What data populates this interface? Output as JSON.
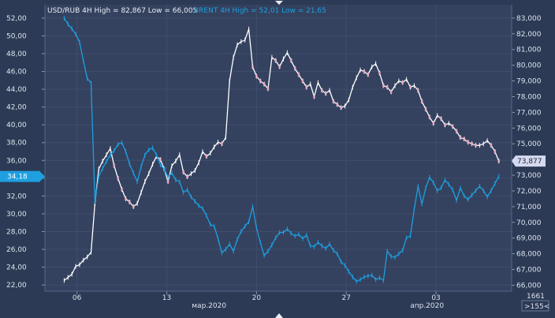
{
  "header": {
    "usd_title": "USD/RUB 4H High = 82,867 Low = 66,005",
    "brent_title": "BRENT 4H High = 52,01 Low = 21,65"
  },
  "colors": {
    "background": "#2c3a55",
    "grid": "#3f4e6c",
    "axis_text": "#dde3ee",
    "usd_line": "#ffffff",
    "brent_line": "#1e9fe0",
    "usd_marker": "#d6daf0",
    "brent_marker": "#1e9fe0",
    "usd_bear_candle": "#e8a8c0"
  },
  "bottom_right": {
    "count": "1661",
    "shift": ">155<"
  },
  "chart_data": {
    "type": "line",
    "x_ticks": [
      {
        "label": "06",
        "x": 1
      },
      {
        "label": "13",
        "x": 8
      },
      {
        "label": "20",
        "x": 15
      },
      {
        "label": "27",
        "x": 22
      },
      {
        "label": "03",
        "x": 29
      }
    ],
    "month_labels": [
      {
        "label": "мар.2020",
        "x": 11.3
      },
      {
        "label": "апр.2020",
        "x": 28.3
      }
    ],
    "xlim": [
      -1.5,
      34.9
    ],
    "left_axis": {
      "ticks": [
        "52,00",
        "50,00",
        "48,00",
        "46,00",
        "44,00",
        "42,00",
        "40,00",
        "38,00",
        "36,00",
        "34,00",
        "32,00",
        "30,00",
        "28,00",
        "26,00",
        "24,00",
        "22,00"
      ],
      "range": [
        21.3,
        53.5
      ],
      "current_marker": "34,18"
    },
    "right_axis": {
      "ticks": [
        "83,000",
        "82,000",
        "81,000",
        "80,000",
        "79,000",
        "78,000",
        "77,000",
        "76,000",
        "75,000",
        "74,000",
        "73,000",
        "72,000",
        "71,000",
        "70,000",
        "69,000",
        "68,000",
        "67,000",
        "66,000"
      ],
      "range": [
        65.62,
        83.85
      ],
      "current_marker": "73,877"
    },
    "series": [
      {
        "name": "USD/RUB",
        "axis": "right",
        "points": [
          [
            0,
            66.3
          ],
          [
            0.3,
            66.5
          ],
          [
            0.6,
            66.7
          ],
          [
            0.9,
            67.2
          ],
          [
            1.2,
            67.3
          ],
          [
            1.5,
            67.6
          ],
          [
            1.8,
            67.8
          ],
          [
            2.1,
            68.1
          ],
          [
            2.4,
            71.2
          ],
          [
            2.7,
            73.4
          ],
          [
            3.0,
            73.9
          ],
          [
            3.3,
            74.3
          ],
          [
            3.6,
            74.7
          ],
          [
            3.9,
            73.6
          ],
          [
            4.2,
            72.8
          ],
          [
            4.5,
            72.1
          ],
          [
            4.8,
            71.5
          ],
          [
            5.1,
            71.3
          ],
          [
            5.4,
            71.0
          ],
          [
            5.7,
            71.2
          ],
          [
            6.0,
            71.9
          ],
          [
            6.3,
            72.6
          ],
          [
            6.6,
            73.1
          ],
          [
            6.9,
            73.7
          ],
          [
            7.2,
            74.2
          ],
          [
            7.5,
            74.0
          ],
          [
            7.8,
            73.4
          ],
          [
            8.1,
            72.6
          ],
          [
            8.4,
            73.6
          ],
          [
            8.7,
            73.9
          ],
          [
            9.0,
            74.3
          ],
          [
            9.3,
            73.2
          ],
          [
            9.6,
            72.9
          ],
          [
            9.9,
            73.1
          ],
          [
            10.2,
            73.3
          ],
          [
            10.5,
            73.8
          ],
          [
            10.8,
            74.5
          ],
          [
            11.1,
            74.2
          ],
          [
            11.4,
            74.4
          ],
          [
            11.7,
            74.8
          ],
          [
            12.0,
            75.1
          ],
          [
            12.3,
            75.0
          ],
          [
            12.6,
            75.4
          ],
          [
            12.9,
            79.0
          ],
          [
            13.2,
            80.5
          ],
          [
            13.5,
            81.3
          ],
          [
            13.8,
            81.5
          ],
          [
            14.1,
            81.6
          ],
          [
            14.4,
            82.3
          ],
          [
            14.7,
            79.9
          ],
          [
            15.0,
            79.3
          ],
          [
            15.3,
            79.0
          ],
          [
            15.6,
            78.8
          ],
          [
            15.9,
            78.5
          ],
          [
            16.2,
            80.5
          ],
          [
            16.5,
            80.3
          ],
          [
            16.8,
            79.9
          ],
          [
            17.1,
            80.4
          ],
          [
            17.4,
            80.8
          ],
          [
            17.7,
            80.3
          ],
          [
            18.0,
            79.8
          ],
          [
            18.3,
            79.4
          ],
          [
            18.6,
            79.0
          ],
          [
            18.9,
            78.6
          ],
          [
            19.2,
            78.8
          ],
          [
            19.5,
            78.0
          ],
          [
            19.8,
            78.9
          ],
          [
            20.1,
            78.4
          ],
          [
            20.4,
            78.2
          ],
          [
            20.7,
            78.4
          ],
          [
            21.0,
            77.7
          ],
          [
            21.3,
            77.5
          ],
          [
            21.6,
            77.3
          ],
          [
            21.9,
            77.4
          ],
          [
            22.2,
            77.8
          ],
          [
            22.5,
            78.6
          ],
          [
            22.8,
            79.2
          ],
          [
            23.1,
            79.7
          ],
          [
            23.4,
            79.6
          ],
          [
            23.7,
            79.4
          ],
          [
            24.0,
            79.9
          ],
          [
            24.3,
            80.1
          ],
          [
            24.6,
            79.5
          ],
          [
            24.9,
            78.7
          ],
          [
            25.2,
            78.6
          ],
          [
            25.5,
            78.3
          ],
          [
            25.8,
            78.7
          ],
          [
            26.1,
            79.0
          ],
          [
            26.4,
            78.9
          ],
          [
            26.7,
            79.1
          ],
          [
            27.0,
            78.6
          ],
          [
            27.3,
            78.7
          ],
          [
            27.6,
            78.4
          ],
          [
            27.9,
            77.7
          ],
          [
            28.2,
            77.2
          ],
          [
            28.5,
            76.7
          ],
          [
            28.8,
            76.3
          ],
          [
            29.1,
            76.8
          ],
          [
            29.4,
            76.6
          ],
          [
            29.7,
            76.2
          ],
          [
            30.0,
            76.3
          ],
          [
            30.3,
            76.1
          ],
          [
            30.6,
            75.8
          ],
          [
            30.9,
            75.4
          ],
          [
            31.2,
            75.3
          ],
          [
            31.5,
            75.1
          ],
          [
            31.8,
            75.0
          ],
          [
            32.1,
            74.9
          ],
          [
            32.4,
            74.9
          ],
          [
            32.7,
            75.0
          ],
          [
            33.0,
            75.2
          ],
          [
            33.3,
            74.9
          ],
          [
            33.6,
            74.5
          ],
          [
            33.9,
            73.9
          ]
        ]
      },
      {
        "name": "BRENT",
        "axis": "left",
        "points": [
          [
            0,
            52.0
          ],
          [
            0.3,
            51.3
          ],
          [
            0.6,
            50.8
          ],
          [
            0.9,
            50.2
          ],
          [
            1.2,
            49.3
          ],
          [
            1.5,
            47.2
          ],
          [
            1.8,
            45.2
          ],
          [
            2.1,
            44.7
          ],
          [
            2.4,
            31.4
          ],
          [
            2.7,
            34.2
          ],
          [
            3.0,
            35.1
          ],
          [
            3.3,
            35.9
          ],
          [
            3.6,
            36.6
          ],
          [
            3.9,
            37.1
          ],
          [
            4.2,
            37.8
          ],
          [
            4.5,
            38.0
          ],
          [
            4.8,
            37.0
          ],
          [
            5.1,
            35.6
          ],
          [
            5.4,
            34.6
          ],
          [
            5.7,
            33.6
          ],
          [
            6.0,
            35.3
          ],
          [
            6.3,
            36.6
          ],
          [
            6.6,
            37.2
          ],
          [
            6.9,
            37.4
          ],
          [
            7.2,
            36.6
          ],
          [
            7.5,
            35.5
          ],
          [
            7.8,
            35.0
          ],
          [
            8.1,
            34.1
          ],
          [
            8.4,
            34.6
          ],
          [
            8.7,
            33.8
          ],
          [
            9.0,
            33.6
          ],
          [
            9.3,
            32.4
          ],
          [
            9.6,
            32.7
          ],
          [
            9.9,
            31.9
          ],
          [
            10.2,
            31.4
          ],
          [
            10.5,
            30.9
          ],
          [
            10.8,
            30.6
          ],
          [
            11.1,
            29.8
          ],
          [
            11.4,
            28.8
          ],
          [
            11.7,
            28.6
          ],
          [
            12.0,
            27.2
          ],
          [
            12.3,
            25.6
          ],
          [
            12.6,
            26.0
          ],
          [
            12.9,
            26.6
          ],
          [
            13.2,
            25.8
          ],
          [
            13.5,
            27.1
          ],
          [
            13.8,
            28.0
          ],
          [
            14.1,
            28.6
          ],
          [
            14.4,
            29.1
          ],
          [
            14.7,
            30.8
          ],
          [
            15.0,
            28.4
          ],
          [
            15.3,
            26.8
          ],
          [
            15.6,
            25.3
          ],
          [
            15.9,
            25.8
          ],
          [
            16.2,
            26.5
          ],
          [
            16.5,
            27.3
          ],
          [
            16.8,
            27.9
          ],
          [
            17.1,
            27.9
          ],
          [
            17.4,
            28.3
          ],
          [
            17.7,
            27.8
          ],
          [
            18.0,
            27.5
          ],
          [
            18.3,
            27.7
          ],
          [
            18.6,
            27.2
          ],
          [
            18.9,
            27.6
          ],
          [
            19.2,
            26.4
          ],
          [
            19.5,
            26.3
          ],
          [
            19.8,
            26.8
          ],
          [
            20.1,
            26.4
          ],
          [
            20.4,
            26.1
          ],
          [
            20.7,
            26.6
          ],
          [
            21.0,
            25.9
          ],
          [
            21.3,
            25.5
          ],
          [
            21.6,
            24.6
          ],
          [
            21.9,
            24.2
          ],
          [
            22.2,
            23.5
          ],
          [
            22.5,
            22.9
          ],
          [
            22.8,
            22.4
          ],
          [
            23.1,
            22.6
          ],
          [
            23.4,
            22.9
          ],
          [
            23.7,
            23.0
          ],
          [
            24.0,
            23.1
          ],
          [
            24.3,
            22.6
          ],
          [
            24.6,
            22.8
          ],
          [
            24.9,
            22.5
          ],
          [
            25.2,
            25.8
          ],
          [
            25.5,
            25.2
          ],
          [
            25.8,
            25.1
          ],
          [
            26.1,
            25.5
          ],
          [
            26.4,
            25.9
          ],
          [
            26.7,
            27.3
          ],
          [
            27.0,
            27.5
          ],
          [
            27.3,
            30.5
          ],
          [
            27.6,
            33.1
          ],
          [
            27.9,
            31.1
          ],
          [
            28.2,
            32.9
          ],
          [
            28.5,
            34.1
          ],
          [
            28.8,
            33.5
          ],
          [
            29.1,
            32.6
          ],
          [
            29.4,
            32.9
          ],
          [
            29.7,
            33.8
          ],
          [
            30.0,
            33.3
          ],
          [
            30.3,
            32.7
          ],
          [
            30.6,
            31.5
          ],
          [
            30.9,
            32.9
          ],
          [
            31.2,
            32.0
          ],
          [
            31.5,
            31.6
          ],
          [
            31.8,
            32.1
          ],
          [
            32.1,
            32.6
          ],
          [
            32.4,
            33.1
          ],
          [
            32.7,
            32.6
          ],
          [
            33.0,
            31.9
          ],
          [
            33.3,
            32.6
          ],
          [
            33.6,
            33.4
          ],
          [
            33.9,
            34.2
          ]
        ]
      }
    ]
  }
}
